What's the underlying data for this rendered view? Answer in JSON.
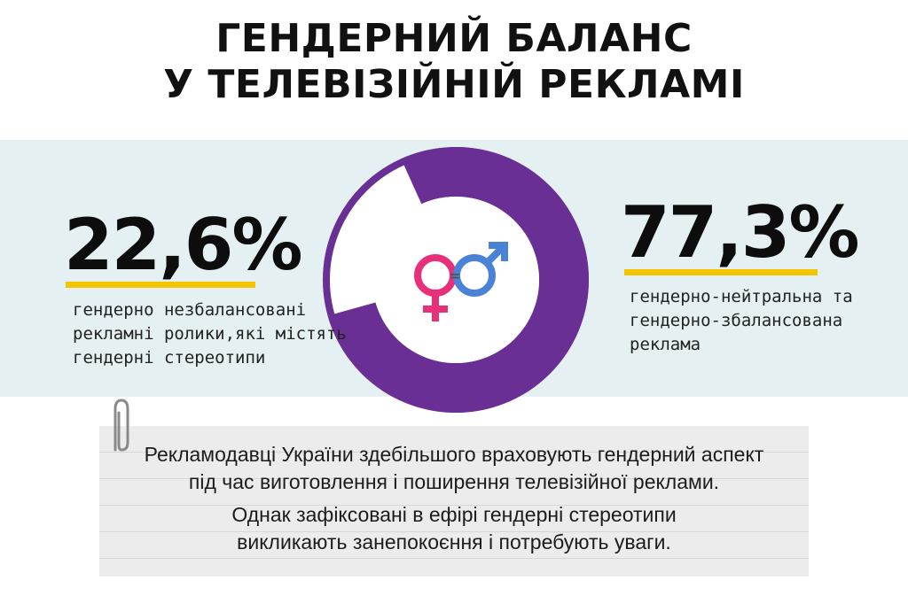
{
  "title": {
    "line1": "ГЕНДЕРНИЙ БАЛАНС",
    "line2": "У ТЕЛЕВІЗІЙНІЙ РЕКЛАМІ"
  },
  "colors": {
    "band": "#e4f0f2",
    "donut_major": "#6a2f94",
    "donut_minor": "#ffffff",
    "underline": "#f2c500",
    "female_symbol": "#e8307a",
    "male_symbol": "#4a82d8"
  },
  "chart_data": {
    "type": "pie",
    "categories": [
      "гендерно незбалансовані рекламні ролики,які містять гендерні стереотипи",
      "гендерно-нейтральна та гендерно-збалансована реклама"
    ],
    "values": [
      22.6,
      77.3
    ],
    "value_labels": [
      "22,6%",
      "77,3%"
    ],
    "left": {
      "value_label": "22,6%",
      "desc": [
        "гендерно незбалансовані",
        "рекламні ролики,які містять",
        "гендерні стереотипи"
      ]
    },
    "right": {
      "value_label": "77,3%",
      "desc": [
        "гендерно-нейтральна та",
        "гендерно-збалансована",
        "реклама"
      ]
    },
    "center_icon": "gender-equality-icon",
    "center_equals": "="
  },
  "note": {
    "lines": [
      "Рекламодавці України здебільшого враховують гендерний аспект",
      "під час виготовлення і поширення телевізійної реклами.",
      "Однак зафіксовані в ефірі гендерні стереотипи",
      "викликають занепокоєння і потребують уваги."
    ],
    "icon": "paperclip-icon"
  }
}
